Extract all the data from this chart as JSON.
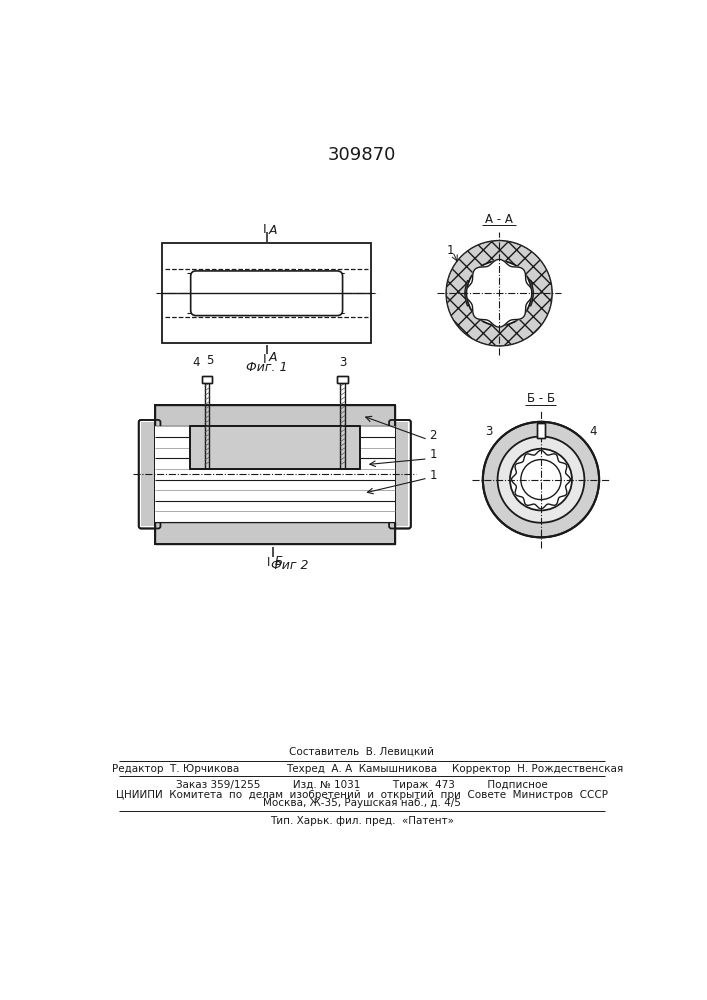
{
  "title": "309870",
  "fig1_caption": "Фиг. 1",
  "fig2_caption": "Фиг 2",
  "footer_composer": "Составитель  В. Левицкий",
  "footer_editor": "Редактор  Т. Юрчикова",
  "footer_techred": "Техред  А. А  Камышникова",
  "footer_corrector": "Корректор  Н. Рождественская",
  "footer_order": "Заказ 359/1255          Изд. № 1031          Тираж  473          Подписное",
  "footer_org": "ЦНИИПИ  Комитета  по  делам  изобретений  и  открытий  при  Совете  Министров  СССР",
  "footer_addr": "Москва, Ж-35, Раушская наб., д. 4/5",
  "footer_print": "Тип. Харьк. фил. пред.  «Патент»",
  "bg": "#ffffff",
  "lc": "#1a1a1a",
  "gray_hatch": "#bbbbbb",
  "dark_gray": "#888888"
}
